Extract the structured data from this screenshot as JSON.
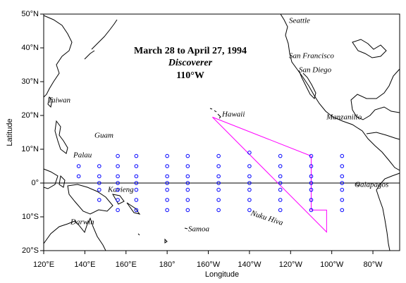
{
  "map": {
    "title_lines": [
      "March 28 to April 27, 1994",
      "Discoverer",
      "110°W"
    ],
    "x_axis_label": "Longitude",
    "y_axis_label": "Latitude",
    "xlim": [
      120,
      293
    ],
    "ylim": [
      -20,
      50
    ],
    "xticks": [
      {
        "value": 120,
        "label": "120°E"
      },
      {
        "value": 140,
        "label": "140°E"
      },
      {
        "value": 160,
        "label": "160°E"
      },
      {
        "value": 180,
        "label": "180°"
      },
      {
        "value": 200,
        "label": "160°W"
      },
      {
        "value": 220,
        "label": "140°W"
      },
      {
        "value": 240,
        "label": "120°W"
      },
      {
        "value": 260,
        "label": "100°W"
      },
      {
        "value": 280,
        "label": "80°W"
      }
    ],
    "yticks": [
      {
        "value": 50,
        "label": "50°N"
      },
      {
        "value": 40,
        "label": "40°N"
      },
      {
        "value": 30,
        "label": "30°N"
      },
      {
        "value": 20,
        "label": "20°N"
      },
      {
        "value": 10,
        "label": "10°N"
      },
      {
        "value": 0,
        "label": "0°"
      },
      {
        "value": -10,
        "label": "10°S"
      },
      {
        "value": -20,
        "label": "20°S"
      }
    ],
    "reference_lines": [
      0
    ],
    "places": [
      "Seattle",
      "San Francisco",
      "San Diego",
      "Manzanillo",
      "Galapagos",
      "Hawaii",
      "Nuku Hiva",
      "Samoa",
      "Taiwan",
      "Guam",
      "Palau",
      "Kavieng",
      "Darwin"
    ],
    "buoy_color": "#0000ff",
    "buoys": [
      {
        "lon": 137,
        "lat": [
          5,
          2
        ]
      },
      {
        "lon": 147,
        "lat": [
          5,
          2,
          0,
          -2,
          -5
        ]
      },
      {
        "lon": 156,
        "lat": [
          8,
          5,
          2,
          0,
          -2,
          -5,
          -8
        ]
      },
      {
        "lon": 165,
        "lat": [
          8,
          5,
          2,
          0,
          -2,
          -5,
          -8
        ]
      },
      {
        "lon": 180,
        "lat": [
          8,
          5,
          2,
          0,
          -2,
          -5,
          -8
        ]
      },
      {
        "lon": 190,
        "lat": [
          8,
          5,
          2,
          0,
          -2,
          -5,
          -8
        ]
      },
      {
        "lon": 205,
        "lat": [
          8,
          5,
          2,
          0,
          -2,
          -5,
          -8
        ]
      },
      {
        "lon": 220,
        "lat": [
          9,
          5,
          2,
          0,
          -2,
          -5,
          -8
        ]
      },
      {
        "lon": 235,
        "lat": [
          8,
          5,
          2,
          0,
          -2,
          -5,
          -8
        ]
      },
      {
        "lon": 250,
        "lat": [
          8,
          5,
          2,
          0,
          -2,
          -5,
          -8
        ]
      },
      {
        "lon": 265,
        "lat": [
          8,
          5,
          2,
          0,
          -2,
          -5,
          -8
        ]
      }
    ],
    "track_color": "#ff00ff",
    "cruise_track": {
      "lon": [
        202,
        250,
        250,
        257.5,
        257.5,
        202
      ],
      "lat": [
        19.5,
        8,
        -8,
        -8,
        -14.5,
        19.5
      ]
    }
  }
}
